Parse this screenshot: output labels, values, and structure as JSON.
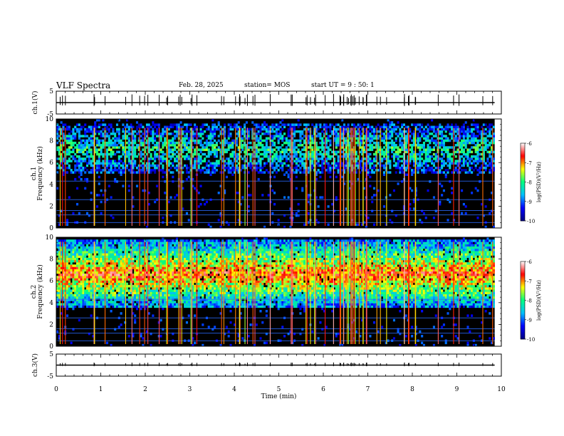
{
  "header": {
    "title": "VLF Spectra",
    "date": "Feb. 28, 2025",
    "station": "station= MOS",
    "start_ut": "start  UT =   9 : 50: 1"
  },
  "colors": {
    "spectrogram_background": "#000000",
    "colorbar": [
      "#000080",
      "#0000ff",
      "#00c0ff",
      "#00ff80",
      "#ffff00",
      "#ff0000",
      "#ffffff"
    ]
  },
  "chart_data": [
    {
      "id": "ch1-waveform",
      "type": "line",
      "ylabel": "ch.1(V)",
      "ylim": [
        -5,
        5
      ],
      "yticks": [
        "5",
        "-5"
      ],
      "xlim": [
        0,
        10
      ],
      "level": 0
    },
    {
      "id": "ch1-spectrogram",
      "type": "heatmap",
      "ylabel": "ch.1\nFrequency (kHz)",
      "ylabel_lines": [
        "ch.1",
        "Frequency (kHz)"
      ],
      "ylim": [
        0,
        10
      ],
      "yticks": [
        "0",
        "2",
        "4",
        "6",
        "8",
        "10"
      ],
      "xlim": [
        0,
        10
      ],
      "emission_band_khz": [
        5,
        9.5
      ],
      "colorbar": {
        "label": "log(PSD)(V²/Hz)",
        "range": [
          -10,
          -6
        ],
        "ticks": [
          "-6",
          "-7",
          "-8",
          "-9",
          "-10"
        ]
      }
    },
    {
      "id": "ch2-spectrogram",
      "type": "heatmap",
      "ylabel": "ch.2\nFrequency (kHz)",
      "ylabel_lines": [
        "ch.2",
        "Frequency (kHz)"
      ],
      "ylim": [
        0,
        10
      ],
      "yticks": [
        "0",
        "2",
        "4",
        "6",
        "8",
        "10"
      ],
      "xlim": [
        0,
        10
      ],
      "emission_band_khz": [
        3.5,
        9.8
      ],
      "colorbar": {
        "label": "log(PSD)(V²/Hz)",
        "range": [
          -10,
          -6
        ],
        "ticks": [
          "-6",
          "-7",
          "-8",
          "-9",
          "-10"
        ]
      }
    },
    {
      "id": "ch3-waveform",
      "type": "line",
      "ylabel": "ch.3(V)",
      "ylim": [
        -5,
        5
      ],
      "yticks": [
        "5",
        "-5"
      ],
      "xlim": [
        0,
        10
      ],
      "level": 0,
      "xlabel": "Time (min)",
      "xticks": [
        "0",
        "1",
        "2",
        "3",
        "4",
        "5",
        "6",
        "7",
        "8",
        "9",
        "10"
      ]
    }
  ]
}
